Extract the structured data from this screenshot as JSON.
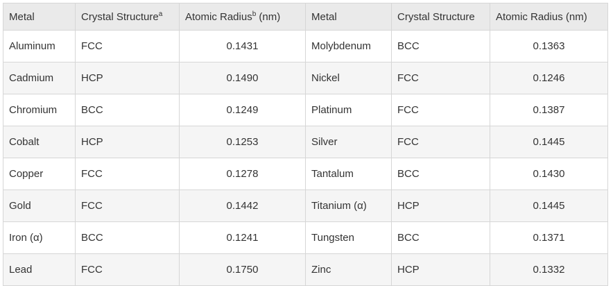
{
  "table": {
    "headers": [
      {
        "text": "Metal",
        "sup": ""
      },
      {
        "text": "Crystal Structure",
        "sup": "a"
      },
      {
        "text": "Atomic Radius",
        "sup": "b",
        "suffix": " (nm)"
      },
      {
        "text": "Metal",
        "sup": ""
      },
      {
        "text": "Crystal Structure",
        "sup": ""
      },
      {
        "text": "Atomic Radius (nm)",
        "sup": ""
      }
    ],
    "rows": [
      [
        "Aluminum",
        "FCC",
        "0.1431",
        "Molybdenum",
        "BCC",
        "0.1363"
      ],
      [
        "Cadmium",
        "HCP",
        "0.1490",
        "Nickel",
        "FCC",
        "0.1246"
      ],
      [
        "Chromium",
        "BCC",
        "0.1249",
        "Platinum",
        "FCC",
        "0.1387"
      ],
      [
        "Cobalt",
        "HCP",
        "0.1253",
        "Silver",
        "FCC",
        "0.1445"
      ],
      [
        "Copper",
        "FCC",
        "0.1278",
        "Tantalum",
        "BCC",
        "0.1430"
      ],
      [
        "Gold",
        "FCC",
        "0.1442",
        "Titanium (α)",
        "HCP",
        "0.1445"
      ],
      [
        "Iron (α)",
        "BCC",
        "0.1241",
        "Tungsten",
        "BCC",
        "0.1371"
      ],
      [
        "Lead",
        "FCC",
        "0.1750",
        "Zinc",
        "HCP",
        "0.1332"
      ]
    ]
  },
  "colors": {
    "header_bg": "#eaeaea",
    "row_alt_bg": "#f5f5f5",
    "border": "#d6d6d6",
    "text": "#333333"
  }
}
